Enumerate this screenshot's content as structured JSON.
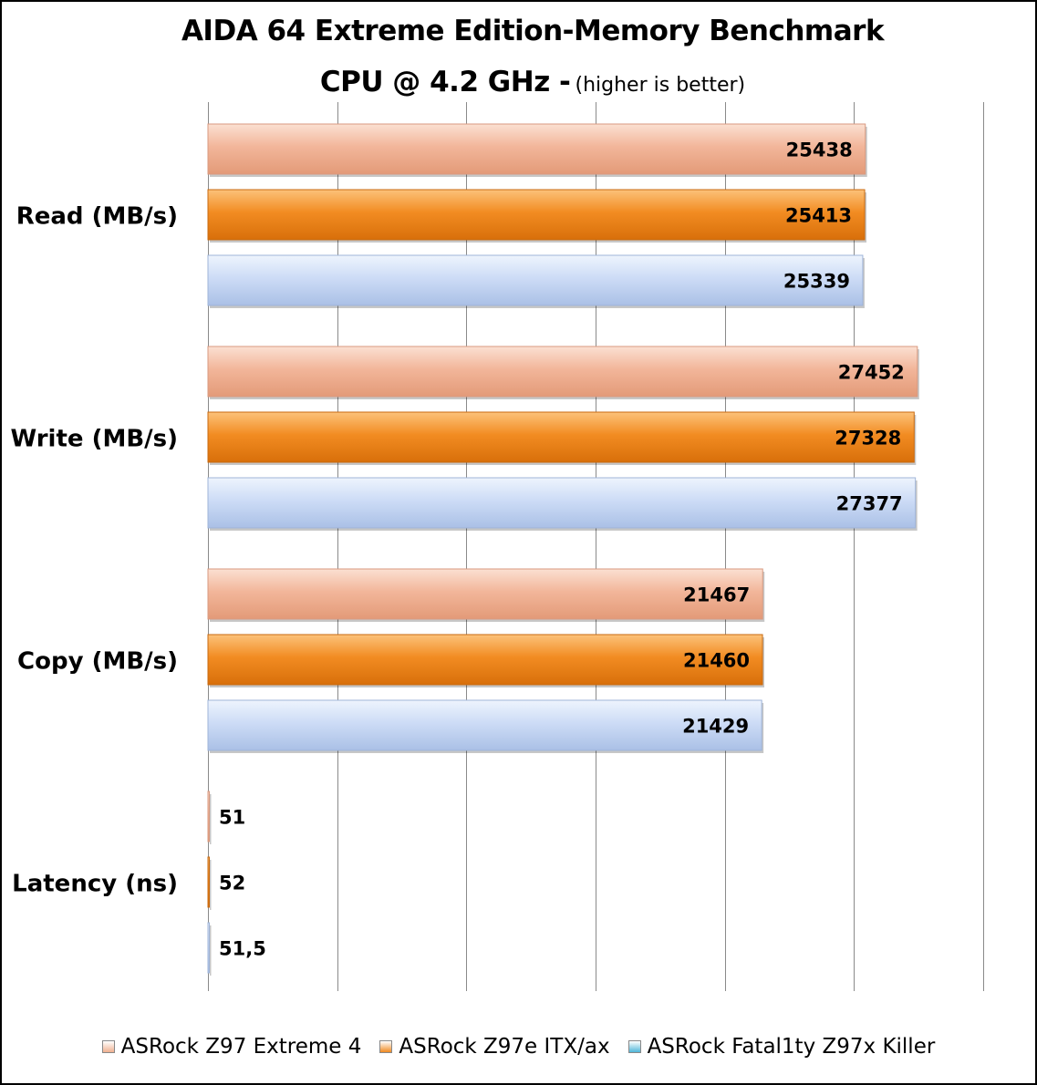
{
  "chart_data": {
    "type": "bar",
    "orientation": "horizontal",
    "title": "AIDA 64 Extreme Edition-Memory Benchmark",
    "subtitle": "CPU @ 4.2 GHz -",
    "subnote": "(higher is better)",
    "categories": [
      "Read (MB/s)",
      "Write (MB/s)",
      "Copy (MB/s)",
      "Latency (ns)"
    ],
    "series": [
      {
        "name": "ASRock Z97 Extreme 4",
        "values": [
          25438,
          27452,
          21467,
          51
        ],
        "value_labels": [
          "25438",
          "27452",
          "21467",
          "51"
        ],
        "color": "#f0b090"
      },
      {
        "name": "ASRock Z97e ITX/ax",
        "values": [
          25413,
          27328,
          21460,
          52
        ],
        "value_labels": [
          "25413",
          "27328",
          "21460",
          "52"
        ],
        "color": "#f08a20"
      },
      {
        "name": "ASRock Fatal1ty Z97x Killer",
        "values": [
          25339,
          27377,
          21429,
          51.5
        ],
        "value_labels": [
          "25339",
          "27377",
          "21429",
          "51,5"
        ],
        "color": "#c6d9f5"
      }
    ],
    "xlim": [
      0,
      30000
    ],
    "x_gridlines": [
      5000,
      10000,
      15000,
      20000,
      25000,
      30000
    ],
    "grid": true,
    "legend_position": "bottom",
    "tick_labels_shown": false
  }
}
